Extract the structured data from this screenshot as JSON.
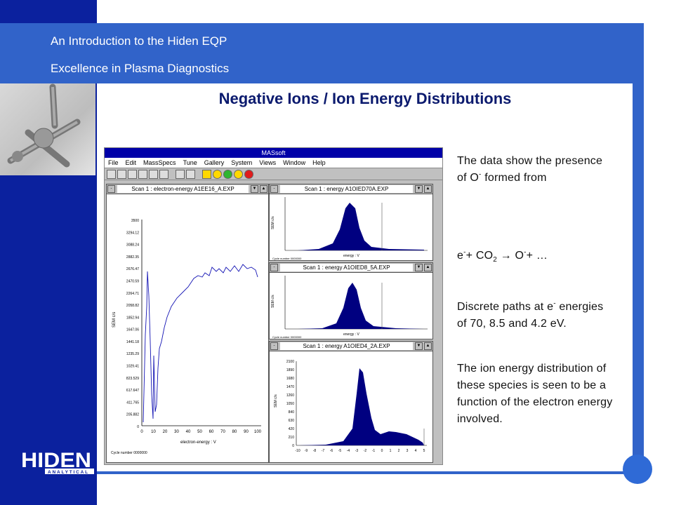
{
  "header": {
    "line1": "An Introduction to the Hiden EQP",
    "line2": "Excellence in Plasma Diagnostics"
  },
  "slide_title": "Negative Ions / Ion Energy Distributions",
  "logo": {
    "name": "HIDEN",
    "sub": "ANALYTICAL"
  },
  "app": {
    "title": "MASsoft",
    "menu": [
      "File",
      "Edit",
      "MassSpecs",
      "Tune",
      "Gallery",
      "System",
      "Views",
      "Window",
      "Help"
    ],
    "scan1": {
      "caption": "Scan 1 : electron-energy A1EE16_A.EXP",
      "ylabel": "SEM c/s",
      "xlabel": "electron-energy : V",
      "cycle": "Cycle number 0000000",
      "yticks": [
        "3500",
        "3294.12",
        "3088.24",
        "2882.35",
        "2676.47",
        "2470.59",
        "2264.71",
        "2058.82",
        "1852.94",
        "1647.06",
        "1441.18",
        "1235.29",
        "1029.41",
        "823.529",
        "617.647",
        "411.765",
        "205.882",
        "0"
      ],
      "xticks": [
        "0",
        "10",
        "20",
        "30",
        "40",
        "50",
        "60",
        "70",
        "80",
        "90",
        "100"
      ]
    },
    "scan2": {
      "caption": "Scan 1 : energy A1OIED70A.EXP",
      "ylabel": "SEM c/s",
      "xlabel": "energy : V",
      "cycle": "Cycle number 0000000"
    },
    "scan3": {
      "caption": "Scan 1 : energy A1OIED8_5A.EXP",
      "ylabel": "SEM c/s",
      "xlabel": "energy : V",
      "cycle": "Cycle number 0000000"
    },
    "scan4": {
      "caption": "Scan 1 : energy A1OIED4_2A.EXP",
      "ylabel": "SEM c/s",
      "yticks": [
        "2100",
        "1890",
        "1680",
        "1470",
        "1260",
        "1050",
        "840",
        "630",
        "420",
        "210",
        "0"
      ],
      "xticks": [
        "-10",
        "-9",
        "-8",
        "-7",
        "-6",
        "-5",
        "-4",
        "-3",
        "-2",
        "-1",
        "0",
        "1",
        "2",
        "3",
        "4",
        "5"
      ]
    }
  },
  "right_text": {
    "p1a": "The data show the presence of O",
    "p1sup": "-",
    "p1b": " formed from",
    "eq_e": "e",
    "eq_sup1": "-",
    "eq_plus": "+ CO",
    "eq_sub": "2",
    "eq_arrow": " → O",
    "eq_sup2": "-",
    "eq_end": "+ …",
    "p2a": "Discrete paths at e",
    "p2sup": "-",
    "p2b": " energies of 70, 8.5 and 4.2 eV.",
    "p3": "The ion energy distribution of these species is seen to be a function of the electron energy involved."
  },
  "colors": {
    "dark_blue": "#0b219e",
    "mid_blue": "#3163c9",
    "plot": "#00008b"
  }
}
